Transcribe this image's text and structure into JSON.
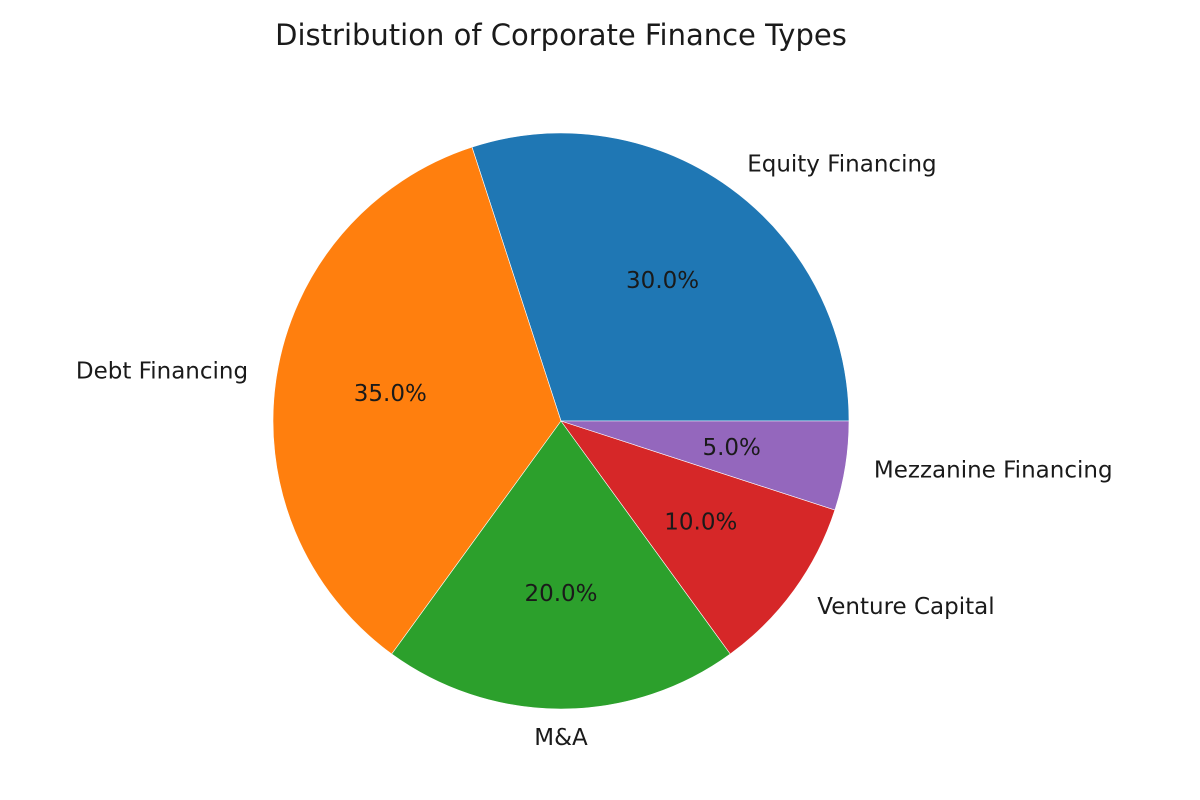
{
  "chart_data": {
    "type": "pie",
    "title": "Distribution of Corporate Finance Types",
    "start_angle_deg": 0,
    "direction": "counterclockwise",
    "legend": "none",
    "slices": [
      {
        "label": "Equity Financing",
        "value": 30.0,
        "pct_label": "30.0%",
        "color": "#1f77b4"
      },
      {
        "label": "Debt Financing",
        "value": 35.0,
        "pct_label": "35.0%",
        "color": "#ff7f0e"
      },
      {
        "label": "M&A",
        "value": 20.0,
        "pct_label": "20.0%",
        "color": "#2ca02c"
      },
      {
        "label": "Venture Capital",
        "value": 10.0,
        "pct_label": "10.0%",
        "color": "#d62728"
      },
      {
        "label": "Mezzanine Financing",
        "value": 5.0,
        "pct_label": "5.0%",
        "color": "#9467bd"
      }
    ]
  }
}
